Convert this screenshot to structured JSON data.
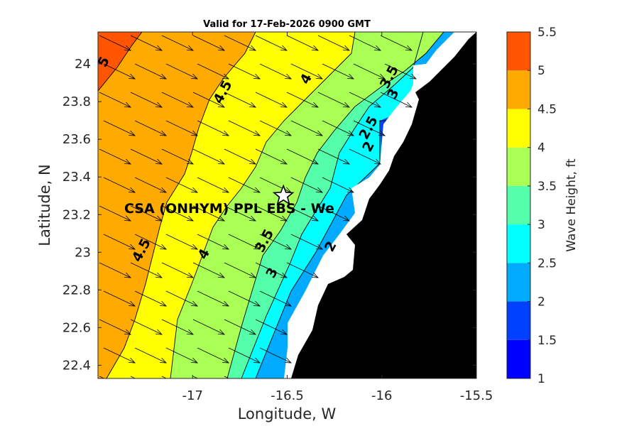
{
  "chart_data": {
    "type": "heatmap",
    "title": "Valid for 17-Feb-2026 0900 GMT",
    "xlabel": "Longitude, W",
    "ylabel": "Latitude, N",
    "xlim": [
      -17.5,
      -15.5
    ],
    "ylim": [
      22.33,
      24.17
    ],
    "xticks": [
      -17,
      -16.5,
      -16,
      -15.5
    ],
    "xtick_labels": [
      "-17",
      "-16.5",
      "-16",
      "-15.5"
    ],
    "yticks": [
      22.4,
      22.6,
      22.8,
      23,
      23.2,
      23.4,
      23.6,
      23.8,
      24
    ],
    "ytick_labels": [
      "22.4",
      "22.6",
      "22.8",
      "23",
      "23.2",
      "23.4",
      "23.6",
      "23.8",
      "24"
    ],
    "colorbar": {
      "label": "Wave Height, ft",
      "levels": [
        1,
        1.5,
        2,
        2.5,
        3,
        3.5,
        4,
        4.5,
        5,
        5.5
      ],
      "level_labels": [
        "1",
        "1.5",
        "2",
        "2.5",
        "3",
        "3.5",
        "4",
        "4.5",
        "5",
        "5.5"
      ],
      "colors": [
        "#0000ff",
        "#0040ff",
        "#00aaff",
        "#00ffff",
        "#55ffaa",
        "#aaff55",
        "#ffff00",
        "#ffaa00",
        "#ff5500"
      ]
    },
    "contours": [
      {
        "level": 5.0,
        "lon": -17.45,
        "lat": 24.0
      },
      {
        "level": 4.5,
        "lon": -17.25,
        "lat": 23.0
      },
      {
        "level": 4.5,
        "lon": -16.82,
        "lat": 23.84
      },
      {
        "level": 4.0,
        "lon": -16.92,
        "lat": 22.98
      },
      {
        "level": 4.0,
        "lon": -16.38,
        "lat": 23.91
      },
      {
        "level": 3.5,
        "lon": -16.6,
        "lat": 23.05
      },
      {
        "level": 3.5,
        "lon": -15.94,
        "lat": 23.92
      },
      {
        "level": 3.0,
        "lon": -16.56,
        "lat": 22.88
      },
      {
        "level": 3.0,
        "lon": -15.92,
        "lat": 23.83
      },
      {
        "level": 2.5,
        "lon": -16.05,
        "lat": 23.65
      },
      {
        "level": 2.0,
        "lon": -16.05,
        "lat": 23.55
      },
      {
        "level": 2.0,
        "lon": -16.25,
        "lat": 23.02
      }
    ],
    "site": {
      "name": "CSA (ONHYM) PPL EBS - We",
      "lon": -16.52,
      "lat": 23.3
    },
    "direction_arrows": "NW to SE (pointing down-right)"
  }
}
